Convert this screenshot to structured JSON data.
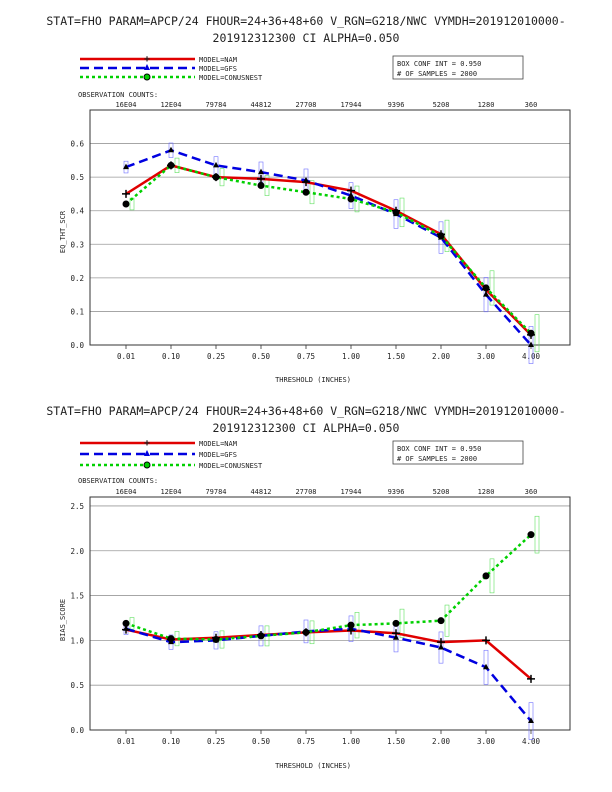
{
  "chart_data": [
    {
      "type": "line",
      "title_line1": "STAT=FHO PARAM=APCP/24 FHOUR=24+36+48+60 V_RGN=G218/NWC VYMDH=201912010000-",
      "title_line2": "201912312300 CI ALPHA=0.050",
      "ylabel": "EQ_THT_SCR",
      "xlabel": "THRESHOLD (INCHES)",
      "ylim": [
        0.0,
        0.7
      ],
      "yticks": [
        "0.0",
        "0.1",
        "0.2",
        "0.3",
        "0.4",
        "0.5",
        "0.6"
      ],
      "categories": [
        "0.01",
        "0.10",
        "0.25",
        "0.50",
        "0.75",
        "1.00",
        "1.50",
        "2.00",
        "3.00",
        "4.00"
      ],
      "obs_counts_label": "OBSERVATION COUNTS:",
      "obs_counts": [
        "16E04",
        "12E04",
        "79784",
        "44812",
        "27708",
        "17944",
        "9396",
        "5208",
        "1280",
        "360"
      ],
      "box_info": [
        "BOX CONF INT = 0.950",
        "# OF SAMPLES =  2000"
      ],
      "grid": "horizontal",
      "legend_placement": "top-left",
      "series": [
        {
          "name": "MODEL=NAM",
          "color": "#e00000",
          "dash": "solid",
          "marker": "plus",
          "values": [
            0.45,
            0.535,
            0.5,
            0.495,
            0.485,
            0.46,
            0.4,
            0.33,
            0.165,
            0.03
          ]
        },
        {
          "name": "MODEL=GFS",
          "color": "#0000e0",
          "dash": "dashed",
          "marker": "triangle",
          "values": [
            0.53,
            0.58,
            0.535,
            0.515,
            0.49,
            0.445,
            0.39,
            0.32,
            0.15,
            0.0
          ]
        },
        {
          "name": "MODEL=CONUSNEST",
          "color": "#00d000",
          "dash": "dotted",
          "marker": "circle",
          "values": [
            0.42,
            0.535,
            0.5,
            0.475,
            0.455,
            0.435,
            0.395,
            0.325,
            0.17,
            0.035
          ]
        }
      ]
    },
    {
      "type": "line",
      "title_line1": "STAT=FHO PARAM=APCP/24 FHOUR=24+36+48+60 V_RGN=G218/NWC VYMDH=201912010000-",
      "title_line2": "201912312300 CI ALPHA=0.050",
      "ylabel": "BIAS_SCORE",
      "xlabel": "THRESHOLD (INCHES)",
      "ylim": [
        0.0,
        2.6
      ],
      "yticks": [
        "0.0",
        "0.5",
        "1.0",
        "1.5",
        "2.0",
        "2.5"
      ],
      "categories": [
        "0.01",
        "0.10",
        "0.25",
        "0.50",
        "0.75",
        "1.00",
        "1.50",
        "2.00",
        "3.00",
        "4.00"
      ],
      "obs_counts_label": "OBSERVATION COUNTS:",
      "obs_counts": [
        "16E04",
        "12E04",
        "79784",
        "44812",
        "27708",
        "17944",
        "9396",
        "5208",
        "1280",
        "360"
      ],
      "box_info": [
        "BOX CONF INT = 0.950",
        "# OF SAMPLES =  2000"
      ],
      "grid": "horizontal",
      "legend_placement": "top-left",
      "series": [
        {
          "name": "MODEL=NAM",
          "color": "#e00000",
          "dash": "solid",
          "marker": "plus",
          "values": [
            1.12,
            1.01,
            1.03,
            1.06,
            1.09,
            1.11,
            1.08,
            0.98,
            1.0,
            0.57
          ]
        },
        {
          "name": "MODEL=GFS",
          "color": "#0000e0",
          "dash": "dashed",
          "marker": "triangle",
          "values": [
            1.13,
            0.98,
            1.0,
            1.05,
            1.1,
            1.13,
            1.03,
            0.92,
            0.7,
            0.1
          ]
        },
        {
          "name": "MODEL=CONUSNEST",
          "color": "#00d000",
          "dash": "dotted",
          "marker": "circle",
          "values": [
            1.19,
            1.02,
            1.01,
            1.05,
            1.09,
            1.17,
            1.19,
            1.22,
            1.72,
            2.18
          ]
        }
      ]
    }
  ]
}
